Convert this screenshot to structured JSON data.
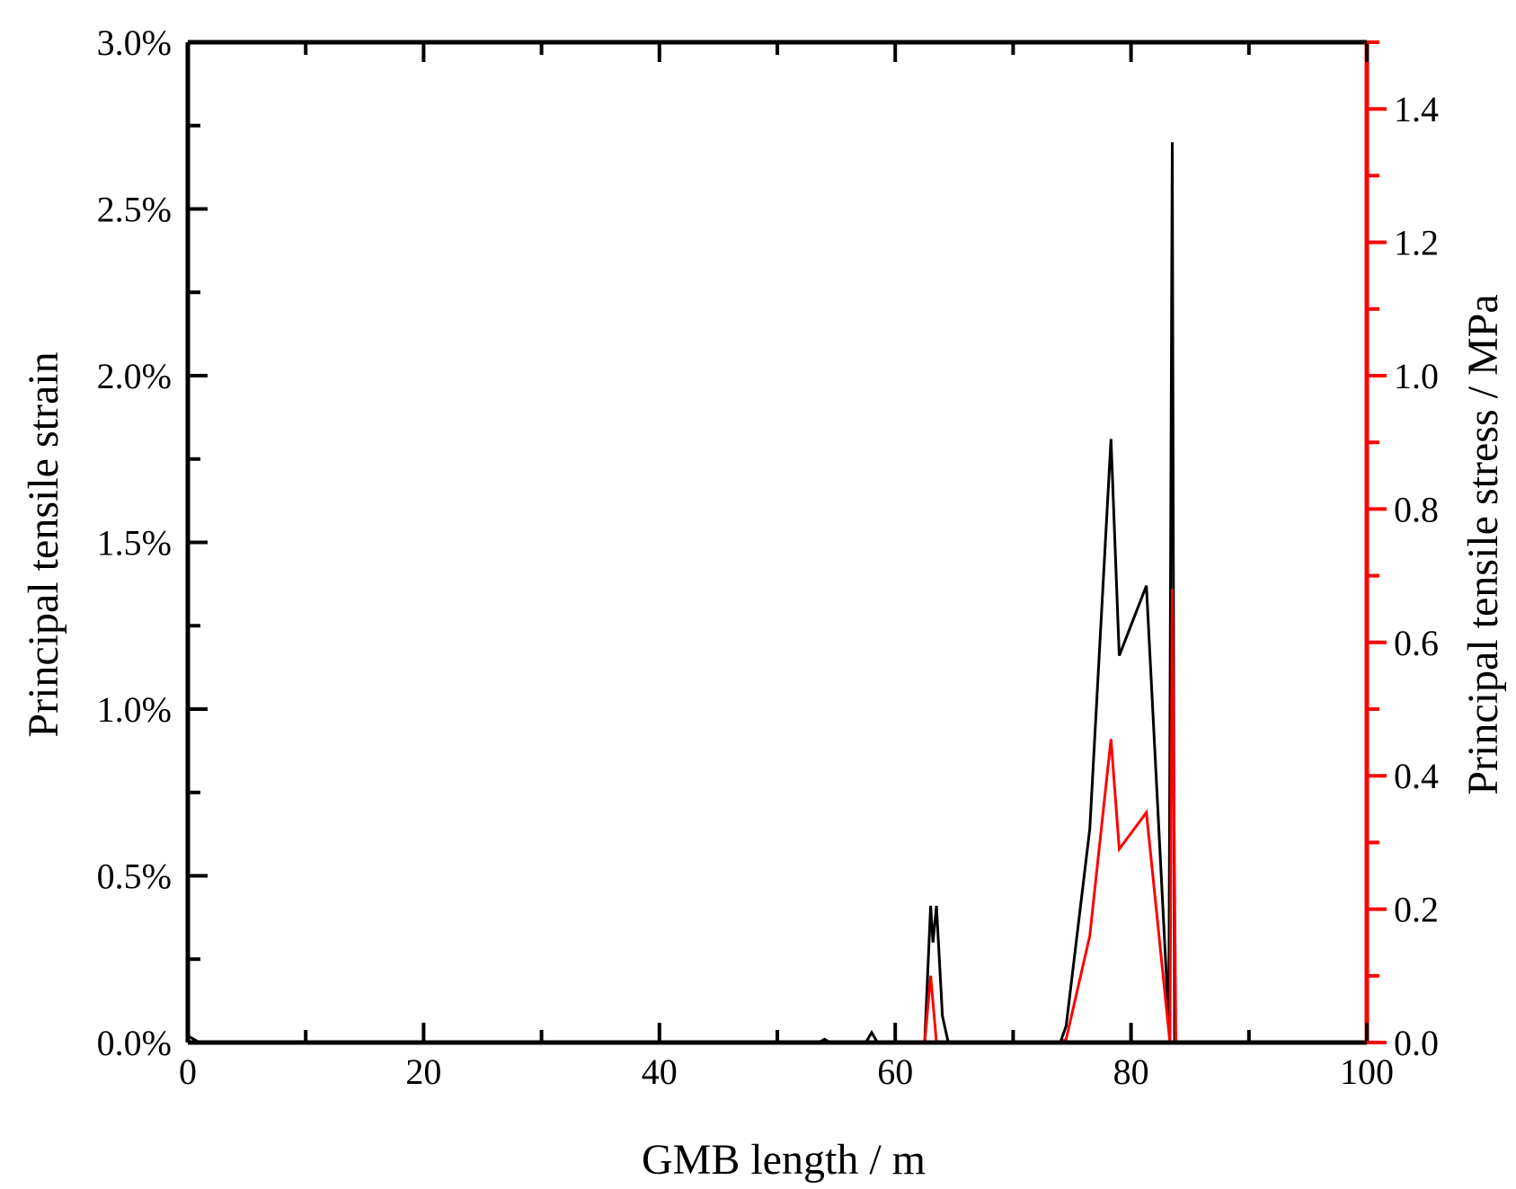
{
  "chart_data": {
    "type": "line",
    "title": "",
    "xlabel": "GMB length / m",
    "ylabel_left": "Principal tensile strain",
    "ylabel_right": "Principal tensile stress / MPa",
    "xlim": [
      0,
      100
    ],
    "ylim_left": [
      0,
      3.0
    ],
    "ylim_right": [
      0,
      1.5
    ],
    "x_ticks": [
      "0",
      "20",
      "40",
      "60",
      "80",
      "100"
    ],
    "y_left_ticks": [
      "0.0%",
      "0.5%",
      "1.0%",
      "1.5%",
      "2.0%",
      "2.5%",
      "3.0%"
    ],
    "y_right_ticks": [
      "0.0",
      "0.2",
      "0.4",
      "0.6",
      "0.8",
      "1.0",
      "1.2",
      "1.4"
    ],
    "grid": false,
    "legend": "none",
    "series": [
      {
        "axis": "left",
        "color": "#000000",
        "unit": "%",
        "x": [
          0,
          1,
          5,
          10,
          20,
          30,
          40,
          50,
          53.5,
          54,
          54.5,
          57.5,
          58,
          58.5,
          62.5,
          63,
          63.2,
          63.5,
          64,
          64.5,
          70,
          74,
          74.5,
          76.5,
          78.3,
          79,
          81.3,
          83.2,
          83.5,
          83.7,
          84
        ],
        "values": [
          0.02,
          0,
          0,
          0,
          0,
          0,
          0,
          0,
          0,
          0.01,
          0,
          0,
          0.03,
          0,
          0,
          0.41,
          0.3,
          0.41,
          0.08,
          0,
          0,
          0,
          0.05,
          0.64,
          1.81,
          1.16,
          1.37,
          0.06,
          2.7,
          0,
          0
        ]
      },
      {
        "axis": "right",
        "color": "#ff0000",
        "unit": "MPa",
        "x": [
          0,
          1,
          10,
          20,
          30,
          40,
          50,
          62.5,
          63,
          63.5,
          64,
          70,
          74,
          74.5,
          76.5,
          78.3,
          79,
          81.3,
          83.3,
          83.5,
          83.8,
          84
        ],
        "values": [
          0.002,
          0,
          0,
          0,
          0,
          0,
          0,
          0,
          0.1,
          0,
          0,
          0,
          0,
          0.005,
          0.16,
          0.455,
          0.29,
          0.345,
          0,
          0.68,
          0,
          0
        ]
      }
    ]
  }
}
